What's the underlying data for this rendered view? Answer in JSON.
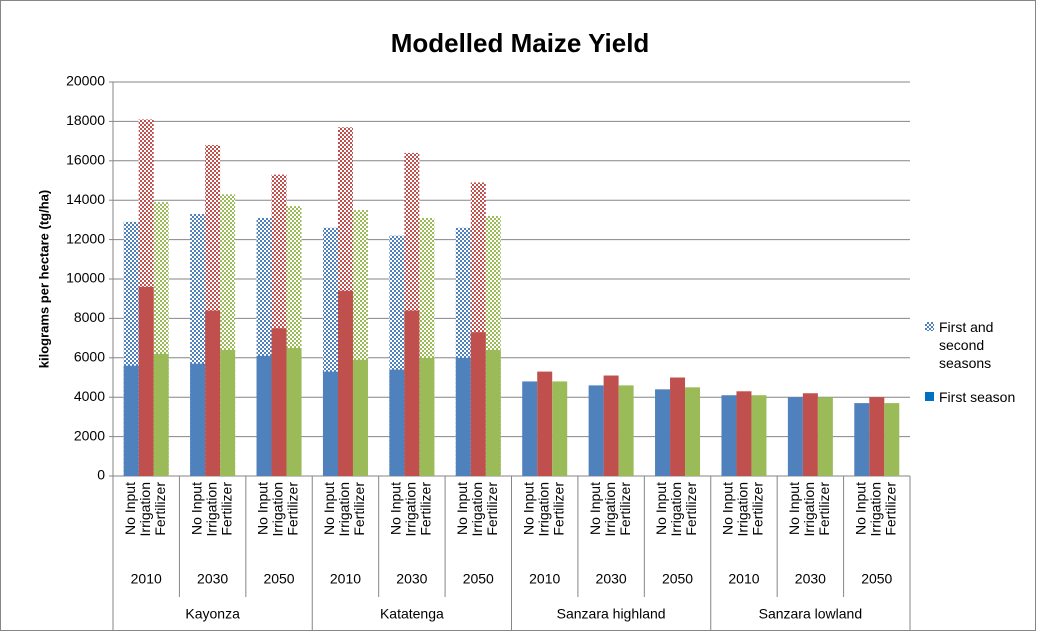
{
  "chart_data": {
    "type": "bar",
    "title": "Modelled Maize Yield",
    "y_label": "kilograms per hectare (tg/ha)",
    "regions": [
      "Kayonza",
      "Katatenga",
      "Sanzara highland",
      "Sanzara lowland"
    ],
    "years": [
      "2010",
      "2030",
      "2050"
    ],
    "treatments": [
      "No Input",
      "Irrigation",
      "Fertilizer"
    ],
    "treatment_colors": [
      "#4f81bd",
      "#c0504d",
      "#9bbb59"
    ],
    "ylim": [
      0,
      20000
    ],
    "yticks": [
      0,
      2000,
      4000,
      6000,
      8000,
      10000,
      12000,
      14000,
      16000,
      18000,
      20000
    ],
    "grid": true,
    "legend": "right",
    "series": [
      {
        "name": "First and second seasons",
        "color": "#4f81bd",
        "pattern": true,
        "values": [
          12900,
          18100,
          13900,
          13300,
          16800,
          14300,
          13100,
          15300,
          13700,
          12600,
          17700,
          13500,
          12200,
          16400,
          13100,
          12600,
          14900,
          13200,
          null,
          null,
          null,
          null,
          null,
          null,
          null,
          null,
          null,
          null,
          null,
          null,
          null,
          null,
          null,
          null,
          null,
          null
        ]
      },
      {
        "name": "First season",
        "color": "#0070c0",
        "pattern": false,
        "values": [
          5600,
          9600,
          6200,
          5700,
          8400,
          6400,
          6100,
          7500,
          6500,
          5300,
          9400,
          5900,
          5400,
          8400,
          6000,
          6000,
          7300,
          6400,
          4800,
          5300,
          4800,
          4600,
          5100,
          4600,
          4400,
          5000,
          4500,
          4100,
          4300,
          4100,
          4000,
          4200,
          4000,
          3700,
          4000,
          3700
        ]
      }
    ]
  }
}
